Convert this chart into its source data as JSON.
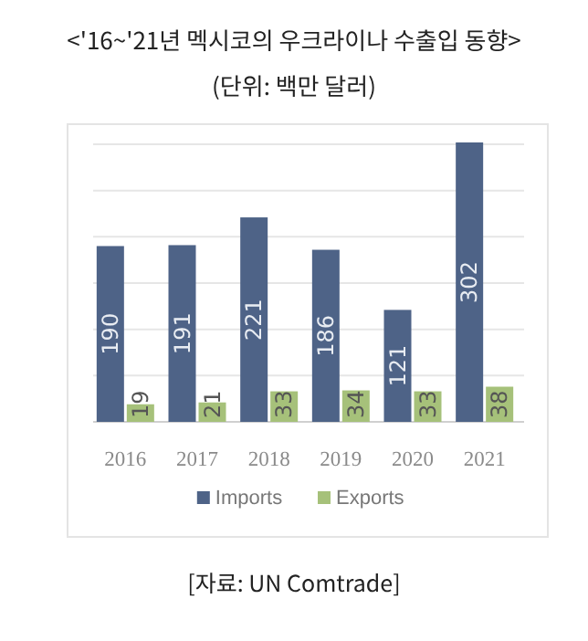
{
  "chart_data": {
    "type": "bar",
    "title": "<'16~'21년 멕시코의 우크라이나 수출입 동향>",
    "subtitle": "(단위: 백만 달러)",
    "annotations": [
      "[자료: UN Comtrade]"
    ],
    "categories": [
      "2016",
      "2017",
      "2018",
      "2019",
      "2020",
      "2021"
    ],
    "series": [
      {
        "name": "Imports",
        "color": "#4e6387",
        "values": [
          190,
          191,
          221,
          186,
          121,
          302
        ]
      },
      {
        "name": "Exports",
        "color": "#a6c17a",
        "values": [
          19,
          21,
          33,
          34,
          33,
          38
        ]
      }
    ],
    "yticks": [
      {
        "value": 0,
        "label": null
      },
      {
        "value": 50,
        "label": null
      },
      {
        "value": 100,
        "label": null
      },
      {
        "value": 150,
        "label": null
      },
      {
        "value": 200,
        "label": null
      },
      {
        "value": 250,
        "label": null
      },
      {
        "value": 300,
        "label": null
      }
    ],
    "tick_labels": "x",
    "grid": "y",
    "legend": "bottom",
    "data_labels": true
  }
}
